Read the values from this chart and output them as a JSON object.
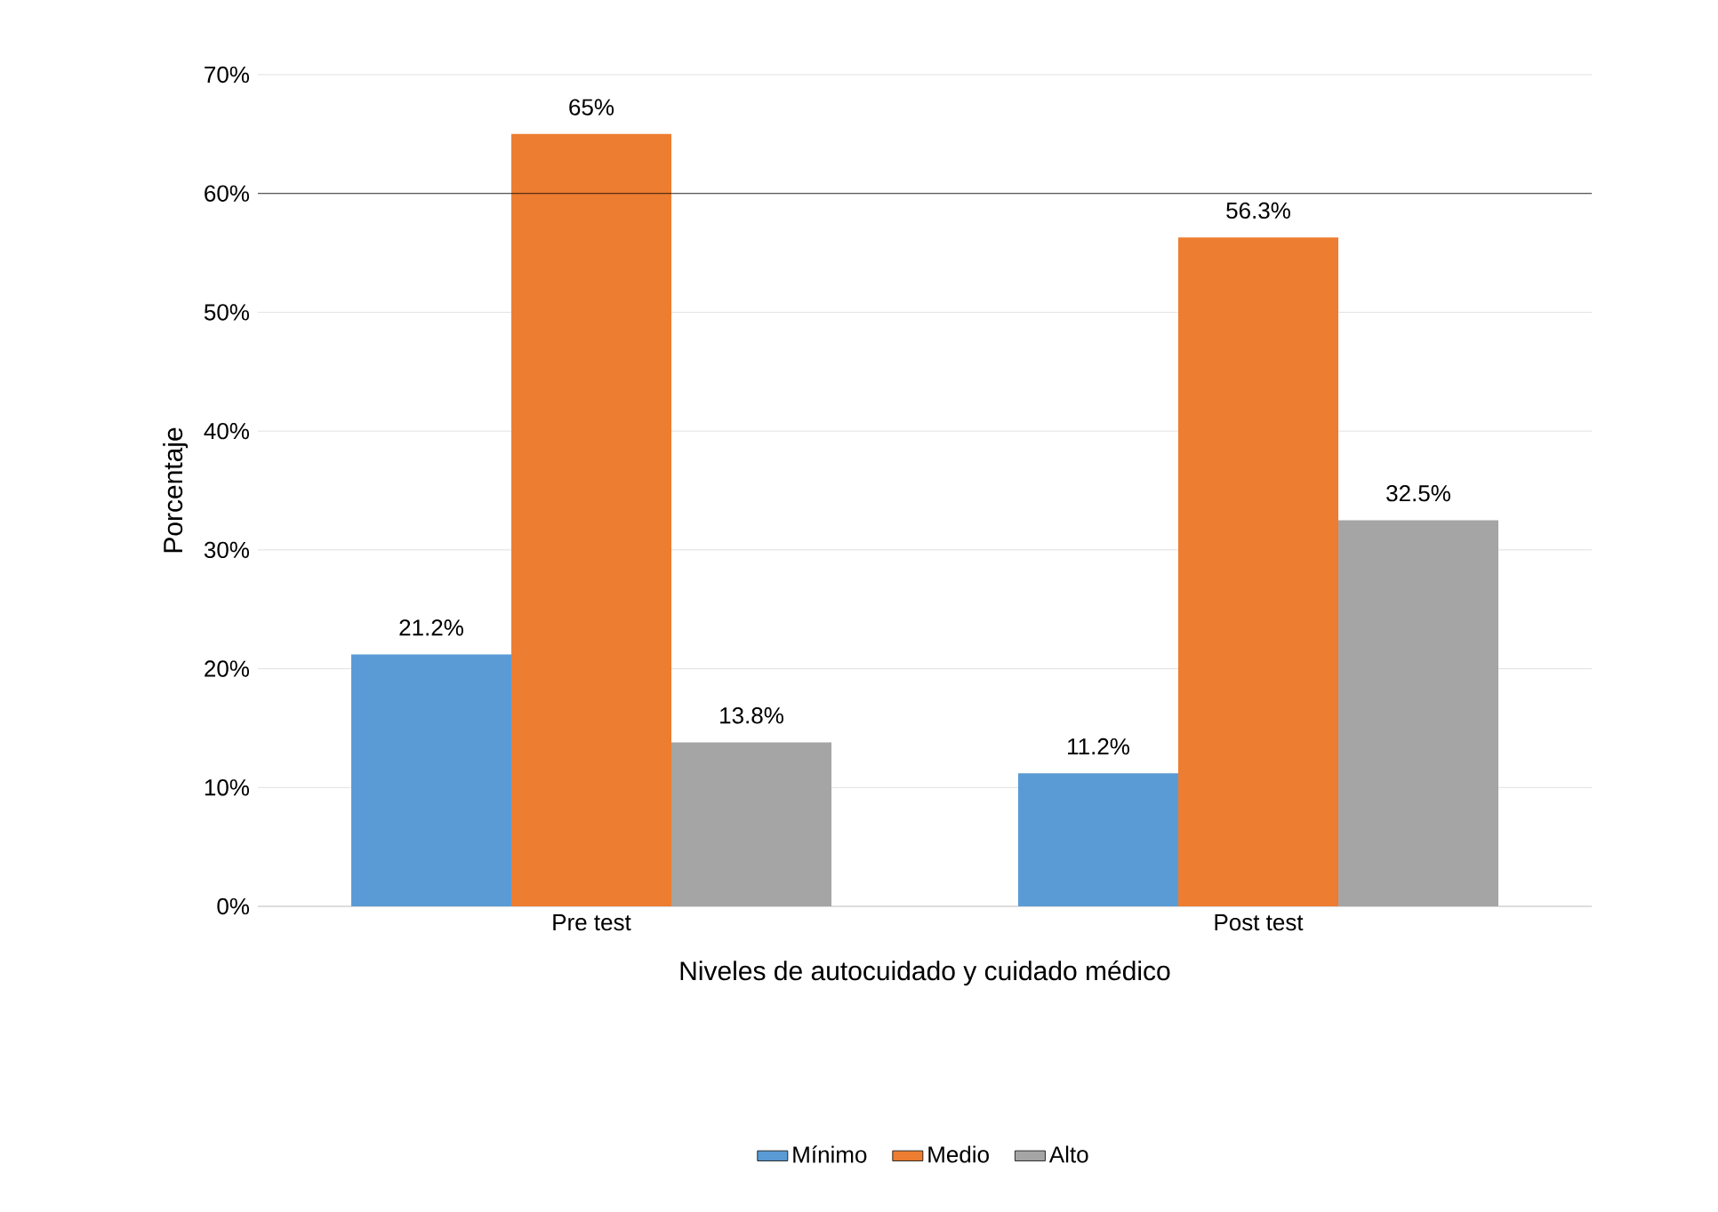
{
  "chart_data": {
    "type": "bar",
    "xlabel": "Niveles de autocuidado y cuidado médico",
    "ylabel": "Porcentaje",
    "categories": [
      "Pre test",
      "Post test"
    ],
    "series": [
      {
        "name": "Mínimo",
        "color": "#5b9bd5",
        "values": [
          21.2,
          11.2
        ],
        "value_labels": [
          "21.2%",
          "11.2%"
        ]
      },
      {
        "name": "Medio",
        "color": "#ed7d31",
        "values": [
          65,
          56.3
        ],
        "value_labels": [
          "65%",
          "56.3%"
        ]
      },
      {
        "name": "Alto",
        "color": "#a5a5a5",
        "values": [
          13.8,
          32.5
        ],
        "value_labels": [
          "13.8%",
          "32.5%"
        ]
      }
    ],
    "ylim": [
      0,
      70
    ],
    "yticks": [
      {
        "value": 0,
        "label": "0%"
      },
      {
        "value": 10,
        "label": "10%"
      },
      {
        "value": 20,
        "label": "20%"
      },
      {
        "value": 30,
        "label": "30%"
      },
      {
        "value": 40,
        "label": "40%"
      },
      {
        "value": 50,
        "label": "50%"
      },
      {
        "value": 60,
        "label": "60%"
      },
      {
        "value": 70,
        "label": "70%"
      }
    ],
    "ref_lines": [
      {
        "axis": "y",
        "value": 60,
        "color": "#000000"
      }
    ],
    "grid": "y",
    "legend": "bottom"
  }
}
